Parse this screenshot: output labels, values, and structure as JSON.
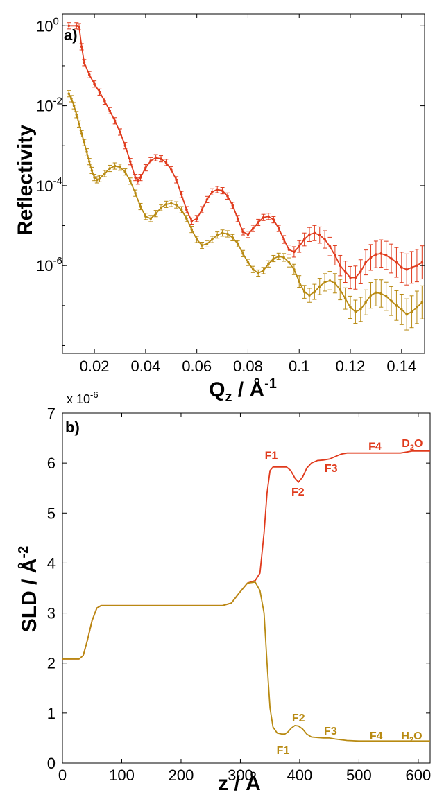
{
  "chart_data": [
    {
      "type": "scatter",
      "panel_label": "a)",
      "xlabel": "Q",
      "xlabel_sub": "z",
      "xlabel_unit": " / Å",
      "xlabel_sup": "-1",
      "ylabel": "Reflectivity",
      "xlim": [
        0.0075,
        0.149
      ],
      "ylim_log10": [
        -8.2,
        0.3
      ],
      "yscale": "log",
      "x_ticks": [
        0.02,
        0.04,
        0.06,
        0.08,
        0.1,
        0.12,
        0.14
      ],
      "x_tick_labels": [
        "0.02",
        "0.04",
        "0.06",
        "0.08",
        "0.1",
        "0.12",
        "0.14"
      ],
      "y_ticks_log10": [
        0,
        -2,
        -4,
        -6
      ],
      "y_tick_base": "10",
      "y_tick_exponents": [
        "0",
        "-2",
        "-4",
        "-6"
      ],
      "grid": false,
      "series": [
        {
          "color": "#e03a1c",
          "data": [
            [
              0.01,
              1.0
            ],
            [
              0.013,
              1.0
            ],
            [
              0.014,
              0.95
            ],
            [
              0.015,
              0.3
            ],
            [
              0.016,
              0.12
            ],
            [
              0.018,
              0.06
            ],
            [
              0.02,
              0.035
            ],
            [
              0.022,
              0.022
            ],
            [
              0.024,
              0.013
            ],
            [
              0.026,
              0.0075
            ],
            [
              0.028,
              0.0042
            ],
            [
              0.03,
              0.0022
            ],
            [
              0.032,
              0.001
            ],
            [
              0.034,
              0.0004
            ],
            [
              0.036,
              0.00016
            ],
            [
              0.037,
              0.00013
            ],
            [
              0.038,
              0.00016
            ],
            [
              0.04,
              0.00028
            ],
            [
              0.042,
              0.00042
            ],
            [
              0.044,
              0.0005
            ],
            [
              0.046,
              0.00047
            ],
            [
              0.048,
              0.00038
            ],
            [
              0.05,
              0.00025
            ],
            [
              0.052,
              0.00014
            ],
            [
              0.054,
              6e-05
            ],
            [
              0.056,
              2.5e-05
            ],
            [
              0.058,
              1.3e-05
            ],
            [
              0.06,
              1.5e-05
            ],
            [
              0.062,
              2.5e-05
            ],
            [
              0.064,
              4.5e-05
            ],
            [
              0.066,
              7e-05
            ],
            [
              0.068,
              8e-05
            ],
            [
              0.07,
              7.5e-05
            ],
            [
              0.072,
              5.5e-05
            ],
            [
              0.074,
              3.2e-05
            ],
            [
              0.076,
              1.5e-05
            ],
            [
              0.078,
              7e-06
            ],
            [
              0.08,
              6e-06
            ],
            [
              0.082,
              8.5e-06
            ],
            [
              0.084,
              1.2e-05
            ],
            [
              0.086,
              1.6e-05
            ],
            [
              0.088,
              1.7e-05
            ],
            [
              0.09,
              1.4e-05
            ],
            [
              0.092,
              8.5e-06
            ],
            [
              0.094,
              4.5e-06
            ],
            [
              0.096,
              2.5e-06
            ],
            [
              0.098,
              2.2e-06
            ],
            [
              0.1,
              3e-06
            ],
            [
              0.102,
              4.5e-06
            ],
            [
              0.104,
              6e-06
            ],
            [
              0.106,
              6.5e-06
            ],
            [
              0.108,
              5.8e-06
            ],
            [
              0.11,
              4.5e-06
            ],
            [
              0.112,
              3e-06
            ],
            [
              0.114,
              1.8e-06
            ],
            [
              0.116,
              1e-06
            ],
            [
              0.118,
              7e-07
            ],
            [
              0.12,
              5e-07
            ],
            [
              0.122,
              5e-07
            ],
            [
              0.124,
              7e-07
            ],
            [
              0.126,
              1.2e-06
            ],
            [
              0.128,
              1.6e-06
            ],
            [
              0.13,
              1.9e-06
            ],
            [
              0.132,
              2e-06
            ],
            [
              0.134,
              1.8e-06
            ],
            [
              0.136,
              1.5e-06
            ],
            [
              0.138,
              1.2e-06
            ],
            [
              0.14,
              9e-07
            ],
            [
              0.142,
              8e-07
            ],
            [
              0.144,
              9e-07
            ],
            [
              0.146,
              1e-06
            ],
            [
              0.148,
              1.2e-06
            ]
          ]
        },
        {
          "color": "#b88a12",
          "data": [
            [
              0.01,
              0.02
            ],
            [
              0.011,
              0.015
            ],
            [
              0.012,
              0.01
            ],
            [
              0.013,
              0.006
            ],
            [
              0.014,
              0.0035
            ],
            [
              0.015,
              0.002
            ],
            [
              0.016,
              0.0012
            ],
            [
              0.017,
              0.0007
            ],
            [
              0.018,
              0.0004
            ],
            [
              0.019,
              0.00024
            ],
            [
              0.02,
              0.00016
            ],
            [
              0.021,
              0.00014
            ],
            [
              0.022,
              0.00015
            ],
            [
              0.024,
              0.0002
            ],
            [
              0.026,
              0.00027
            ],
            [
              0.028,
              0.00031
            ],
            [
              0.03,
              0.00029
            ],
            [
              0.032,
              0.00022
            ],
            [
              0.034,
              0.00013
            ],
            [
              0.036,
              6.5e-05
            ],
            [
              0.038,
              3e-05
            ],
            [
              0.04,
              1.7e-05
            ],
            [
              0.042,
              1.5e-05
            ],
            [
              0.044,
              2e-05
            ],
            [
              0.046,
              2.8e-05
            ],
            [
              0.048,
              3.4e-05
            ],
            [
              0.05,
              3.6e-05
            ],
            [
              0.052,
              3.3e-05
            ],
            [
              0.054,
              2.5e-05
            ],
            [
              0.056,
              1.5e-05
            ],
            [
              0.058,
              8e-06
            ],
            [
              0.06,
              4.5e-06
            ],
            [
              0.062,
              3.2e-06
            ],
            [
              0.064,
              3.5e-06
            ],
            [
              0.066,
              4.5e-06
            ],
            [
              0.068,
              5.8e-06
            ],
            [
              0.07,
              6.5e-06
            ],
            [
              0.072,
              6.2e-06
            ],
            [
              0.074,
              5e-06
            ],
            [
              0.076,
              3.5e-06
            ],
            [
              0.078,
              2e-06
            ],
            [
              0.08,
              1.2e-06
            ],
            [
              0.082,
              8e-07
            ],
            [
              0.084,
              6.5e-07
            ],
            [
              0.086,
              7.5e-07
            ],
            [
              0.088,
              1.1e-06
            ],
            [
              0.09,
              1.5e-06
            ],
            [
              0.092,
              1.7e-06
            ],
            [
              0.094,
              1.6e-06
            ],
            [
              0.096,
              1.2e-06
            ],
            [
              0.098,
              8e-07
            ],
            [
              0.1,
              4e-07
            ],
            [
              0.102,
              2.2e-07
            ],
            [
              0.104,
              1.8e-07
            ],
            [
              0.106,
              2.2e-07
            ],
            [
              0.108,
              3e-07
            ],
            [
              0.11,
              3.8e-07
            ],
            [
              0.112,
              4.2e-07
            ],
            [
              0.114,
              3.6e-07
            ],
            [
              0.116,
              2.5e-07
            ],
            [
              0.118,
              1.5e-07
            ],
            [
              0.12,
              9e-08
            ],
            [
              0.122,
              7e-08
            ],
            [
              0.124,
              8e-08
            ],
            [
              0.126,
              1.2e-07
            ],
            [
              0.128,
              1.8e-07
            ],
            [
              0.13,
              2.1e-07
            ],
            [
              0.132,
              2e-07
            ],
            [
              0.134,
              1.7e-07
            ],
            [
              0.136,
              1.3e-07
            ],
            [
              0.138,
              1e-07
            ],
            [
              0.14,
              8e-08
            ],
            [
              0.142,
              6e-08
            ],
            [
              0.144,
              7e-08
            ],
            [
              0.146,
              9e-08
            ],
            [
              0.148,
              1.2e-07
            ]
          ]
        }
      ]
    },
    {
      "type": "line",
      "panel_label": "b)",
      "xlabel": "z / Å",
      "ylabel": "SLD / Å",
      "ylabel_sup": "-2",
      "y_multiplier": "x 10",
      "y_multiplier_sup": "-6",
      "xlim": [
        0,
        620
      ],
      "ylim": [
        0,
        7
      ],
      "x_ticks": [
        0,
        100,
        200,
        300,
        400,
        500,
        600
      ],
      "x_tick_labels": [
        "0",
        "100",
        "200",
        "300",
        "400",
        "500",
        "600"
      ],
      "y_ticks": [
        0,
        1,
        2,
        3,
        4,
        5,
        6,
        7
      ],
      "y_tick_labels": [
        "0",
        "1",
        "2",
        "3",
        "4",
        "5",
        "6",
        "7"
      ],
      "grid": false,
      "series": [
        {
          "color": "#e03a1c",
          "x": [
            0,
            28,
            35,
            42,
            50,
            58,
            65,
            270,
            285,
            298,
            312,
            325,
            333,
            340,
            345,
            350,
            355,
            362,
            378,
            385,
            392,
            398,
            405,
            412,
            420,
            430,
            440,
            450,
            460,
            470,
            480,
            500,
            540,
            570,
            580,
            590,
            600,
            620
          ],
          "y": [
            2.08,
            2.08,
            2.15,
            2.45,
            2.85,
            3.1,
            3.15,
            3.15,
            3.2,
            3.4,
            3.6,
            3.65,
            3.8,
            4.6,
            5.4,
            5.85,
            5.92,
            5.92,
            5.92,
            5.85,
            5.7,
            5.62,
            5.72,
            5.9,
            6.0,
            6.05,
            6.06,
            6.08,
            6.13,
            6.18,
            6.2,
            6.2,
            6.2,
            6.2,
            6.22,
            6.24,
            6.24,
            6.24
          ]
        },
        {
          "color": "#b88a12",
          "x": [
            0,
            28,
            35,
            42,
            50,
            58,
            65,
            270,
            285,
            298,
            312,
            325,
            333,
            340,
            345,
            350,
            355,
            362,
            370,
            375,
            380,
            386,
            392,
            398,
            405,
            412,
            420,
            430,
            440,
            450,
            460,
            480,
            500,
            540,
            580,
            620
          ],
          "y": [
            2.08,
            2.08,
            2.15,
            2.45,
            2.85,
            3.1,
            3.15,
            3.15,
            3.2,
            3.4,
            3.6,
            3.62,
            3.45,
            3.0,
            2.0,
            1.1,
            0.72,
            0.6,
            0.58,
            0.58,
            0.62,
            0.7,
            0.75,
            0.74,
            0.68,
            0.58,
            0.52,
            0.51,
            0.5,
            0.5,
            0.48,
            0.45,
            0.44,
            0.44,
            0.44,
            0.44
          ]
        }
      ],
      "annotations": [
        {
          "text": "F1",
          "x": 352,
          "y": 6.08,
          "color": "#e03a1c"
        },
        {
          "text": "F2",
          "x": 397,
          "y": 5.35,
          "color": "#e03a1c"
        },
        {
          "text": "F3",
          "x": 453,
          "y": 5.82,
          "color": "#e03a1c"
        },
        {
          "text": "F4",
          "x": 527,
          "y": 6.26,
          "color": "#e03a1c"
        },
        {
          "text": "D",
          "sub": "2",
          "tail": "O",
          "x": 590,
          "y": 6.32,
          "color": "#e03a1c"
        },
        {
          "text": "F1",
          "x": 372,
          "y": 0.18,
          "color": "#b88a12"
        },
        {
          "text": "F2",
          "x": 398,
          "y": 0.83,
          "color": "#b88a12"
        },
        {
          "text": "F3",
          "x": 452,
          "y": 0.57,
          "color": "#b88a12"
        },
        {
          "text": "F4",
          "x": 529,
          "y": 0.47,
          "color": "#b88a12"
        },
        {
          "text": "H",
          "sub": "2",
          "tail": "O",
          "x": 589,
          "y": 0.47,
          "color": "#b88a12"
        }
      ]
    }
  ]
}
